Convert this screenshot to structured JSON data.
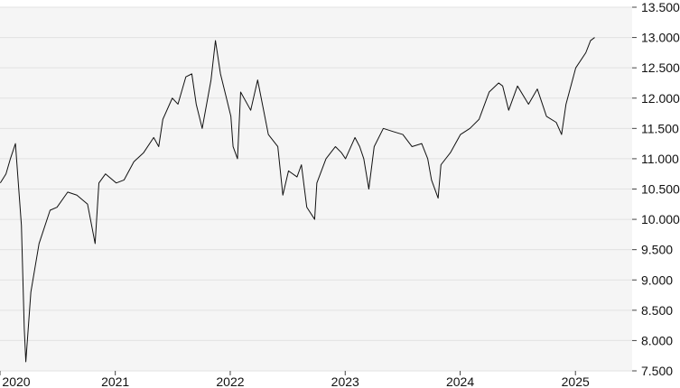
{
  "chart_data": {
    "type": "line",
    "title": "",
    "xlabel": "",
    "ylabel": "",
    "grid": true,
    "legend": "none",
    "ylim": [
      7500,
      13500
    ],
    "xlim": [
      "2020-01-01",
      "2025-06-30"
    ],
    "y_ticks": [
      7500,
      8000,
      8500,
      9000,
      9500,
      10000,
      10500,
      11000,
      11500,
      12000,
      12500,
      13000,
      13500
    ],
    "y_tick_labels": [
      "7.500",
      "8.000",
      "8.500",
      "9.000",
      "9.500",
      "10.000",
      "10.500",
      "11.000",
      "11.500",
      "12.000",
      "12.500",
      "13.000",
      "13.500"
    ],
    "x_ticks": [
      "2020-01-01",
      "2021-01-01",
      "2022-01-01",
      "2023-01-01",
      "2024-01-01",
      "2025-01-01"
    ],
    "x_tick_labels": [
      "2020",
      "2021",
      "2022",
      "2023",
      "2024",
      "2025"
    ],
    "colors": {
      "line": "#111111",
      "plot_background": "#f5f5f5",
      "grid": "#e2e2e2",
      "text": "#111111"
    },
    "series": [
      {
        "x": [
          "2020-01-02",
          "2020-01-20",
          "2020-02-03",
          "2020-02-19",
          "2020-03-09",
          "2020-03-18",
          "2020-03-23",
          "2020-04-08",
          "2020-05-04",
          "2020-06-08",
          "2020-06-30",
          "2020-08-03",
          "2020-09-01",
          "2020-10-05",
          "2020-10-29",
          "2020-11-10",
          "2020-12-01",
          "2021-01-04",
          "2021-01-29",
          "2021-03-01",
          "2021-04-01",
          "2021-05-03",
          "2021-05-19",
          "2021-06-01",
          "2021-07-01",
          "2021-07-19",
          "2021-08-13",
          "2021-09-01",
          "2021-09-15",
          "2021-10-04",
          "2021-11-01",
          "2021-11-15",
          "2021-12-01",
          "2021-12-20",
          "2022-01-03",
          "2022-01-10",
          "2022-01-24",
          "2022-02-03",
          "2022-03-07",
          "2022-03-29",
          "2022-05-02",
          "2022-06-01",
          "2022-06-17",
          "2022-07-05",
          "2022-08-01",
          "2022-08-15",
          "2022-09-01",
          "2022-09-26",
          "2022-10-03",
          "2022-11-01",
          "2022-12-01",
          "2022-12-20",
          "2023-01-02",
          "2023-02-01",
          "2023-02-16",
          "2023-03-01",
          "2023-03-17",
          "2023-04-03",
          "2023-05-02",
          "2023-06-01",
          "2023-07-03",
          "2023-08-01",
          "2023-09-01",
          "2023-09-20",
          "2023-10-02",
          "2023-10-23",
          "2023-11-01",
          "2023-12-01",
          "2024-01-02",
          "2024-02-01",
          "2024-03-01",
          "2024-04-02",
          "2024-05-02",
          "2024-05-15",
          "2024-06-03",
          "2024-07-01",
          "2024-08-05",
          "2024-09-02",
          "2024-10-01",
          "2024-11-01",
          "2024-11-18",
          "2024-12-02",
          "2025-01-02",
          "2025-02-03",
          "2025-02-18",
          "2025-03-03"
        ],
        "y": [
          10600,
          10750,
          11000,
          11250,
          9900,
          8200,
          7650,
          8800,
          9600,
          10150,
          10200,
          10450,
          10400,
          10250,
          9600,
          10600,
          10750,
          10600,
          10650,
          10950,
          11100,
          11350,
          11200,
          11650,
          12000,
          11900,
          12350,
          12400,
          11900,
          11500,
          12300,
          12950,
          12400,
          12000,
          11700,
          11200,
          11000,
          12100,
          11800,
          12300,
          11400,
          11200,
          10400,
          10800,
          10700,
          10900,
          10200,
          10000,
          10600,
          11000,
          11200,
          11100,
          11000,
          11350,
          11200,
          11000,
          10500,
          11200,
          11500,
          11450,
          11400,
          11200,
          11250,
          11000,
          10650,
          10350,
          10900,
          11100,
          11400,
          11500,
          11650,
          12100,
          12250,
          12200,
          11800,
          12200,
          11900,
          12150,
          11700,
          11600,
          11400,
          11900,
          12500,
          12750,
          12950,
          13000
        ]
      }
    ]
  }
}
